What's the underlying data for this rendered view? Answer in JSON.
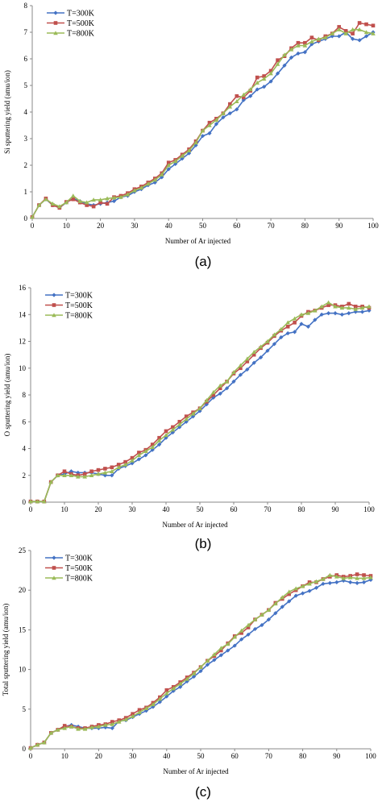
{
  "colors": {
    "T300": "#4472C4",
    "T500": "#C0504D",
    "T800": "#9BBB59",
    "axis": "#888888"
  },
  "chart_data": [
    {
      "type": "line",
      "panel_label": "(a)",
      "xlabel": "Number of Ar injected",
      "ylabel": "Si  sputtering yield (amu/ion)",
      "xlim": [
        0,
        100
      ],
      "ylim": [
        0,
        8
      ],
      "xticks": [
        0,
        10,
        20,
        30,
        40,
        50,
        60,
        70,
        80,
        90,
        100
      ],
      "yticks": [
        0,
        1,
        2,
        3,
        4,
        5,
        6,
        7,
        8
      ],
      "grid": false,
      "legend_position": "top-left",
      "x": [
        0,
        2,
        4,
        6,
        8,
        10,
        12,
        14,
        16,
        18,
        20,
        22,
        24,
        26,
        28,
        30,
        32,
        34,
        36,
        38,
        40,
        42,
        44,
        46,
        48,
        50,
        52,
        54,
        56,
        58,
        60,
        62,
        64,
        66,
        68,
        70,
        72,
        74,
        76,
        78,
        80,
        82,
        84,
        86,
        88,
        90,
        92,
        94,
        96,
        98,
        100
      ],
      "series": [
        {
          "name": "T=300K",
          "marker": "diamond",
          "values": [
            0.05,
            0.5,
            0.72,
            0.5,
            0.4,
            0.6,
            0.75,
            0.65,
            0.55,
            0.5,
            0.55,
            0.6,
            0.65,
            0.8,
            0.85,
            1.0,
            1.1,
            1.25,
            1.35,
            1.55,
            1.85,
            2.05,
            2.25,
            2.45,
            2.75,
            3.1,
            3.2,
            3.55,
            3.8,
            3.95,
            4.1,
            4.45,
            4.6,
            4.85,
            4.95,
            5.15,
            5.45,
            5.75,
            6.05,
            6.2,
            6.25,
            6.55,
            6.65,
            6.75,
            6.85,
            6.85,
            7.0,
            6.75,
            6.7,
            6.85,
            7.0
          ]
        },
        {
          "name": "T=500K",
          "marker": "square",
          "values": [
            0.05,
            0.5,
            0.75,
            0.5,
            0.4,
            0.62,
            0.72,
            0.6,
            0.5,
            0.45,
            0.6,
            0.55,
            0.8,
            0.85,
            0.95,
            1.1,
            1.2,
            1.35,
            1.5,
            1.7,
            2.1,
            2.2,
            2.4,
            2.6,
            2.9,
            3.3,
            3.6,
            3.75,
            3.95,
            4.3,
            4.6,
            4.55,
            4.8,
            5.3,
            5.35,
            5.55,
            5.95,
            6.1,
            6.4,
            6.6,
            6.6,
            6.8,
            6.7,
            6.85,
            6.95,
            7.2,
            7.05,
            6.95,
            7.35,
            7.3,
            7.25
          ]
        },
        {
          "name": "T=800K",
          "marker": "triangle",
          "values": [
            0.05,
            0.5,
            0.72,
            0.55,
            0.45,
            0.6,
            0.85,
            0.65,
            0.6,
            0.7,
            0.7,
            0.75,
            0.78,
            0.8,
            0.9,
            1.05,
            1.15,
            1.3,
            1.45,
            1.65,
            2.0,
            2.15,
            2.35,
            2.55,
            2.85,
            3.3,
            3.5,
            3.7,
            3.95,
            4.2,
            4.4,
            4.65,
            4.85,
            5.1,
            5.25,
            5.45,
            5.8,
            6.15,
            6.35,
            6.5,
            6.5,
            6.65,
            6.75,
            6.8,
            6.95,
            7.1,
            6.95,
            7.1,
            7.1,
            7.0,
            6.95
          ]
        }
      ]
    },
    {
      "type": "line",
      "panel_label": "(b)",
      "xlabel": "Number of Ar injected",
      "ylabel": "O sputtering yield (amu/ion)",
      "xlim": [
        0,
        100
      ],
      "ylim": [
        0,
        16
      ],
      "xticks": [
        0,
        10,
        20,
        30,
        40,
        50,
        60,
        70,
        80,
        90,
        100
      ],
      "yticks": [
        0,
        2,
        4,
        6,
        8,
        10,
        12,
        14,
        16
      ],
      "grid": false,
      "legend_position": "top-left",
      "x": [
        0,
        2,
        4,
        6,
        8,
        10,
        12,
        14,
        16,
        18,
        20,
        22,
        24,
        26,
        28,
        30,
        32,
        34,
        36,
        38,
        40,
        42,
        44,
        46,
        48,
        50,
        52,
        54,
        56,
        58,
        60,
        62,
        64,
        66,
        68,
        70,
        72,
        74,
        76,
        78,
        80,
        82,
        84,
        86,
        88,
        90,
        92,
        94,
        96,
        98,
        100
      ],
      "series": [
        {
          "name": "T=300K",
          "marker": "diamond",
          "values": [
            0.05,
            0.05,
            0.05,
            1.5,
            2.0,
            2.1,
            2.3,
            2.2,
            2.2,
            2.2,
            2.1,
            2.0,
            2.0,
            2.5,
            2.7,
            2.9,
            3.2,
            3.5,
            3.9,
            4.3,
            4.8,
            5.2,
            5.6,
            6.0,
            6.4,
            6.8,
            7.3,
            7.8,
            8.1,
            8.5,
            9.0,
            9.5,
            9.9,
            10.4,
            10.8,
            11.3,
            11.8,
            12.3,
            12.6,
            12.7,
            13.3,
            13.1,
            13.6,
            14.0,
            14.1,
            14.1,
            14.0,
            14.1,
            14.2,
            14.2,
            14.3
          ]
        },
        {
          "name": "T=500K",
          "marker": "square",
          "values": [
            0.05,
            0.05,
            0.05,
            1.5,
            2.0,
            2.3,
            2.1,
            2.0,
            2.1,
            2.3,
            2.4,
            2.5,
            2.6,
            2.8,
            3.0,
            3.3,
            3.7,
            3.9,
            4.3,
            4.8,
            5.3,
            5.6,
            6.0,
            6.4,
            6.7,
            7.0,
            7.5,
            8.0,
            8.5,
            9.0,
            9.6,
            10.0,
            10.5,
            11.0,
            11.5,
            11.9,
            12.4,
            12.8,
            13.1,
            13.4,
            13.9,
            14.2,
            14.3,
            14.5,
            14.7,
            14.7,
            14.6,
            14.8,
            14.6,
            14.6,
            14.5
          ]
        },
        {
          "name": "T=800K",
          "marker": "triangle",
          "values": [
            0.05,
            0.05,
            0.05,
            1.5,
            2.0,
            2.0,
            2.0,
            1.9,
            1.9,
            2.0,
            2.1,
            2.2,
            2.3,
            2.6,
            2.8,
            3.1,
            3.5,
            3.8,
            4.1,
            4.6,
            5.0,
            5.4,
            5.8,
            6.2,
            6.6,
            7.0,
            7.6,
            8.2,
            8.7,
            9.0,
            9.7,
            10.2,
            10.7,
            11.2,
            11.6,
            12.0,
            12.5,
            12.9,
            13.4,
            13.7,
            14.0,
            14.1,
            14.3,
            14.6,
            14.9,
            14.6,
            14.5,
            14.5,
            14.4,
            14.5,
            14.6
          ]
        }
      ]
    },
    {
      "type": "line",
      "panel_label": "(c)",
      "xlabel": "Number of Ar injected",
      "ylabel": "Total sputtering yield (amu/ion)",
      "xlim": [
        0,
        100
      ],
      "ylim": [
        0,
        25
      ],
      "xticks": [
        0,
        10,
        20,
        30,
        40,
        50,
        60,
        70,
        80,
        90,
        100
      ],
      "yticks": [
        0,
        5,
        10,
        15,
        20,
        25
      ],
      "grid": false,
      "legend_position": "top-left",
      "x": [
        0,
        2,
        4,
        6,
        8,
        10,
        12,
        14,
        16,
        18,
        20,
        22,
        24,
        26,
        28,
        30,
        32,
        34,
        36,
        38,
        40,
        42,
        44,
        46,
        48,
        50,
        52,
        54,
        56,
        58,
        60,
        62,
        64,
        66,
        68,
        70,
        72,
        74,
        76,
        78,
        80,
        82,
        84,
        86,
        88,
        90,
        92,
        94,
        96,
        98,
        100
      ],
      "series": [
        {
          "name": "T=300K",
          "marker": "diamond",
          "values": [
            0.1,
            0.5,
            0.8,
            2.0,
            2.4,
            2.8,
            3.0,
            2.8,
            2.6,
            2.6,
            2.6,
            2.7,
            2.6,
            3.5,
            3.6,
            4.0,
            4.4,
            4.8,
            5.3,
            5.9,
            6.6,
            7.3,
            7.8,
            8.5,
            9.1,
            9.8,
            10.6,
            11.2,
            11.8,
            12.4,
            13.0,
            13.8,
            14.4,
            15.1,
            15.6,
            16.3,
            17.1,
            17.9,
            18.6,
            19.3,
            19.6,
            19.9,
            20.3,
            20.8,
            20.9,
            21.0,
            21.2,
            21.0,
            20.9,
            21.0,
            21.3
          ]
        },
        {
          "name": "T=500K",
          "marker": "square",
          "values": [
            0.1,
            0.5,
            0.8,
            2.0,
            2.4,
            2.9,
            2.8,
            2.6,
            2.6,
            2.8,
            3.0,
            3.1,
            3.4,
            3.6,
            3.9,
            4.4,
            4.9,
            5.2,
            5.8,
            6.5,
            7.4,
            7.8,
            8.4,
            9.0,
            9.6,
            10.3,
            11.1,
            11.7,
            12.4,
            13.3,
            14.2,
            14.6,
            15.3,
            16.3,
            16.9,
            17.5,
            18.4,
            18.9,
            19.5,
            20.0,
            20.5,
            21.0,
            21.0,
            21.4,
            21.7,
            21.9,
            21.7,
            21.8,
            22.0,
            21.9,
            21.8
          ]
        },
        {
          "name": "T=800K",
          "marker": "triangle",
          "values": [
            0.1,
            0.5,
            0.8,
            2.0,
            2.4,
            2.6,
            2.8,
            2.5,
            2.5,
            2.7,
            2.8,
            3.0,
            3.1,
            3.4,
            3.7,
            4.1,
            4.6,
            5.1,
            5.6,
            6.3,
            7.0,
            7.6,
            8.2,
            8.8,
            9.5,
            10.3,
            11.1,
            11.9,
            12.7,
            13.2,
            14.1,
            14.9,
            15.6,
            16.3,
            16.9,
            17.5,
            18.3,
            19.1,
            19.8,
            20.2,
            20.5,
            20.8,
            21.1,
            21.4,
            21.9,
            21.7,
            21.5,
            21.6,
            21.5,
            21.5,
            21.6
          ]
        }
      ]
    }
  ]
}
